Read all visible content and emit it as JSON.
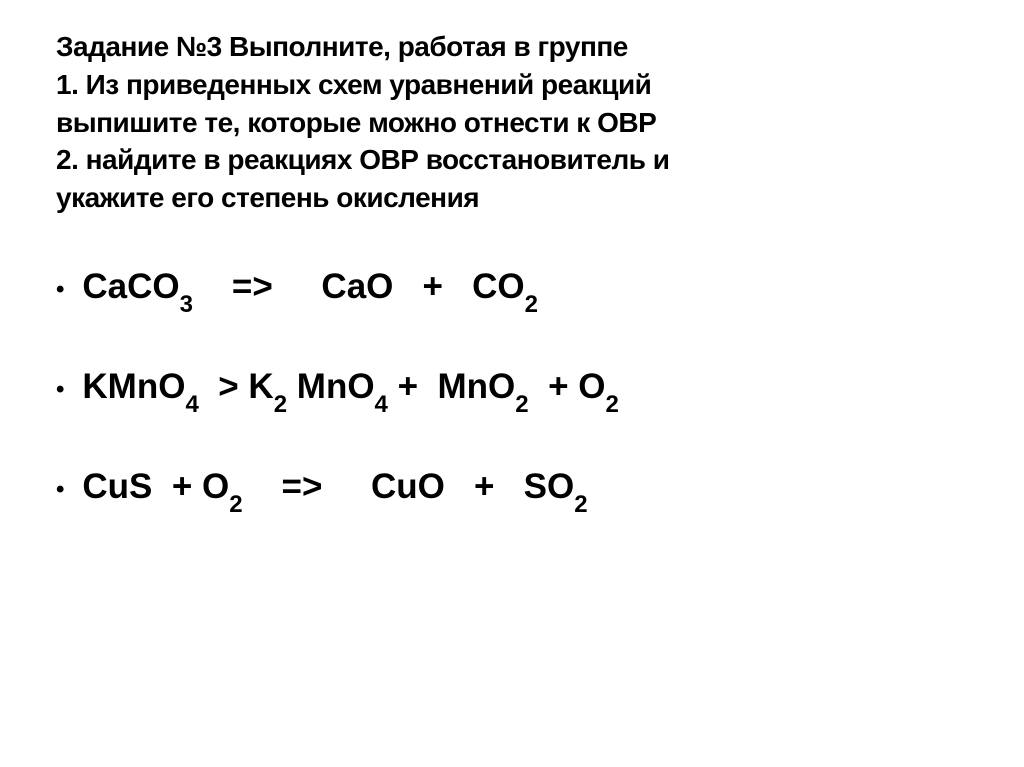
{
  "header": {
    "line1": "Задание №3 Выполните, работая в группе",
    "line2": "1. Из приведенных схем уравнений реакций",
    "line3": "выпишите  те, которые можно отнести к ОВР",
    "line4": "2. найдите в реакциях ОВР восстановитель и",
    "line5": "укажите его степень окисления"
  },
  "equations": {
    "eq1": {
      "p1": "CaCO",
      "s1": "3",
      "p2": "    =>     CaO   +   CO",
      "s2": "2"
    },
    "eq2": {
      "p1": "KMnO",
      "s1": "4",
      "p2": "  > K",
      "s2": "2",
      "p3": " MnO",
      "s3": "4",
      "p4": " +  MnO",
      "s4": "2",
      "p5": "  + O",
      "s5": "2"
    },
    "eq3": {
      "p1": "CuS  + O",
      "s1": "2",
      "p2": "    =>     CuO   +   SO",
      "s2": "2"
    }
  },
  "style": {
    "bullet": "•",
    "header_fontsize": 28,
    "equation_fontsize": 35,
    "sub_fontsize": 24,
    "text_color": "#000000",
    "background_color": "#ffffff",
    "font_family": "Arial"
  }
}
